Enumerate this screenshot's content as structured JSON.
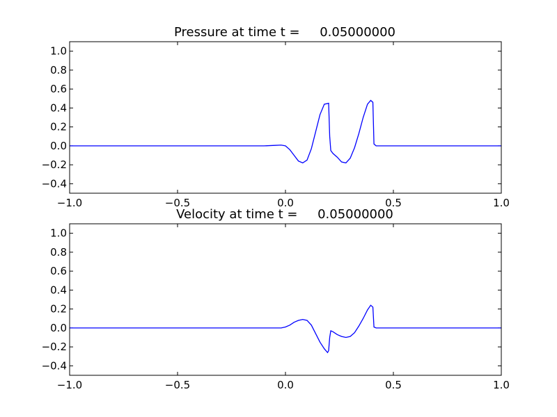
{
  "figure": {
    "background": "#ffffff",
    "line_color": "#0000ff"
  },
  "chart_data": [
    {
      "type": "line",
      "title": "Pressure at time t =     0.05000000",
      "xlim": [
        -1.0,
        1.0
      ],
      "ylim": [
        -0.5,
        1.1
      ],
      "xticks": [
        -1.0,
        -0.5,
        0.0,
        0.5,
        1.0
      ],
      "xtick_labels": [
        "−1.0",
        "−0.5",
        "0.0",
        "0.5",
        "1.0"
      ],
      "yticks": [
        -0.4,
        -0.2,
        0.0,
        0.2,
        0.4,
        0.6,
        0.8,
        1.0
      ],
      "ytick_labels": [
        "−0.4",
        "−0.2",
        "0.0",
        "0.2",
        "0.4",
        "0.6",
        "0.8",
        "1.0"
      ],
      "grid": false,
      "series": [
        {
          "color": "#0000ff",
          "x": [
            -1.0,
            -0.5,
            -0.2,
            -0.15,
            -0.1,
            -0.05,
            -0.02,
            0.0,
            0.02,
            0.04,
            0.06,
            0.08,
            0.1,
            0.12,
            0.14,
            0.16,
            0.18,
            0.2,
            0.205,
            0.21,
            0.22,
            0.24,
            0.26,
            0.28,
            0.3,
            0.32,
            0.34,
            0.36,
            0.38,
            0.395,
            0.405,
            0.41,
            0.42,
            0.5,
            1.0
          ],
          "y": [
            0.0,
            0.0,
            0.0,
            0.0,
            0.0,
            0.005,
            0.008,
            0.0,
            -0.04,
            -0.1,
            -0.16,
            -0.18,
            -0.15,
            -0.03,
            0.15,
            0.33,
            0.44,
            0.45,
            0.1,
            -0.05,
            -0.08,
            -0.12,
            -0.17,
            -0.18,
            -0.13,
            -0.02,
            0.13,
            0.3,
            0.44,
            0.48,
            0.46,
            0.02,
            0.0,
            0.0,
            0.0
          ]
        }
      ]
    },
    {
      "type": "line",
      "title": "Velocity at time t =     0.05000000",
      "xlim": [
        -1.0,
        1.0
      ],
      "ylim": [
        -0.5,
        1.1
      ],
      "xticks": [
        -1.0,
        -0.5,
        0.0,
        0.5,
        1.0
      ],
      "xtick_labels": [
        "−1.0",
        "−0.5",
        "0.0",
        "0.5",
        "1.0"
      ],
      "yticks": [
        -0.4,
        -0.2,
        0.0,
        0.2,
        0.4,
        0.6,
        0.8,
        1.0
      ],
      "ytick_labels": [
        "−0.4",
        "−0.2",
        "0.0",
        "0.2",
        "0.4",
        "0.6",
        "0.8",
        "1.0"
      ],
      "grid": false,
      "series": [
        {
          "color": "#0000ff",
          "x": [
            -1.0,
            -0.5,
            -0.15,
            -0.1,
            -0.05,
            -0.02,
            0.0,
            0.02,
            0.04,
            0.06,
            0.08,
            0.1,
            0.12,
            0.14,
            0.16,
            0.18,
            0.195,
            0.2,
            0.205,
            0.21,
            0.22,
            0.24,
            0.26,
            0.28,
            0.3,
            0.32,
            0.34,
            0.36,
            0.38,
            0.395,
            0.405,
            0.41,
            0.42,
            0.5,
            1.0
          ],
          "y": [
            0.0,
            0.0,
            0.0,
            0.0,
            0.0,
            0.0,
            0.01,
            0.03,
            0.06,
            0.08,
            0.09,
            0.08,
            0.03,
            -0.06,
            -0.15,
            -0.22,
            -0.26,
            -0.24,
            -0.1,
            -0.03,
            -0.04,
            -0.07,
            -0.09,
            -0.1,
            -0.09,
            -0.05,
            0.02,
            0.1,
            0.19,
            0.24,
            0.22,
            0.01,
            0.0,
            0.0,
            0.0
          ]
        }
      ]
    }
  ]
}
